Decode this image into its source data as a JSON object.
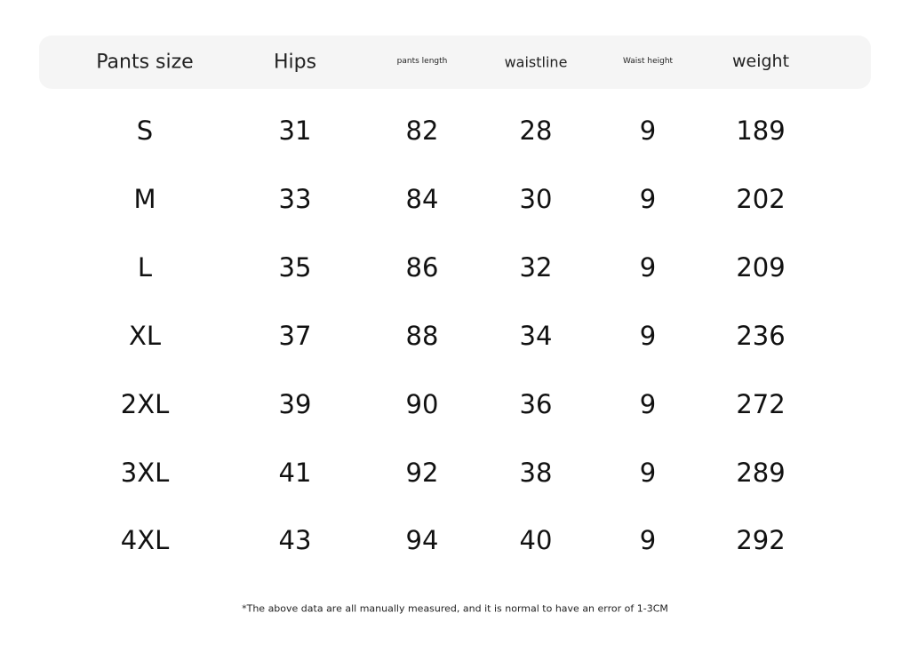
{
  "table": {
    "headers": [
      "Pants size",
      "Hips",
      "pants length",
      "waistline",
      "Waist height",
      "weight"
    ],
    "rows": [
      [
        "S",
        "31",
        "82",
        "28",
        "9",
        "189"
      ],
      [
        "M",
        "33",
        "84",
        "30",
        "9",
        "202"
      ],
      [
        "L",
        "35",
        "86",
        "32",
        "9",
        "209"
      ],
      [
        "XL",
        "37",
        "88",
        "34",
        "9",
        "236"
      ],
      [
        "2XL",
        "39",
        "90",
        "36",
        "9",
        "272"
      ],
      [
        "3XL",
        "41",
        "92",
        "38",
        "9",
        "289"
      ],
      [
        "4XL",
        "43",
        "94",
        "40",
        "9",
        "292"
      ]
    ]
  },
  "footnote": "*The above data are all manually measured, and it is normal to have an error of 1-3CM"
}
